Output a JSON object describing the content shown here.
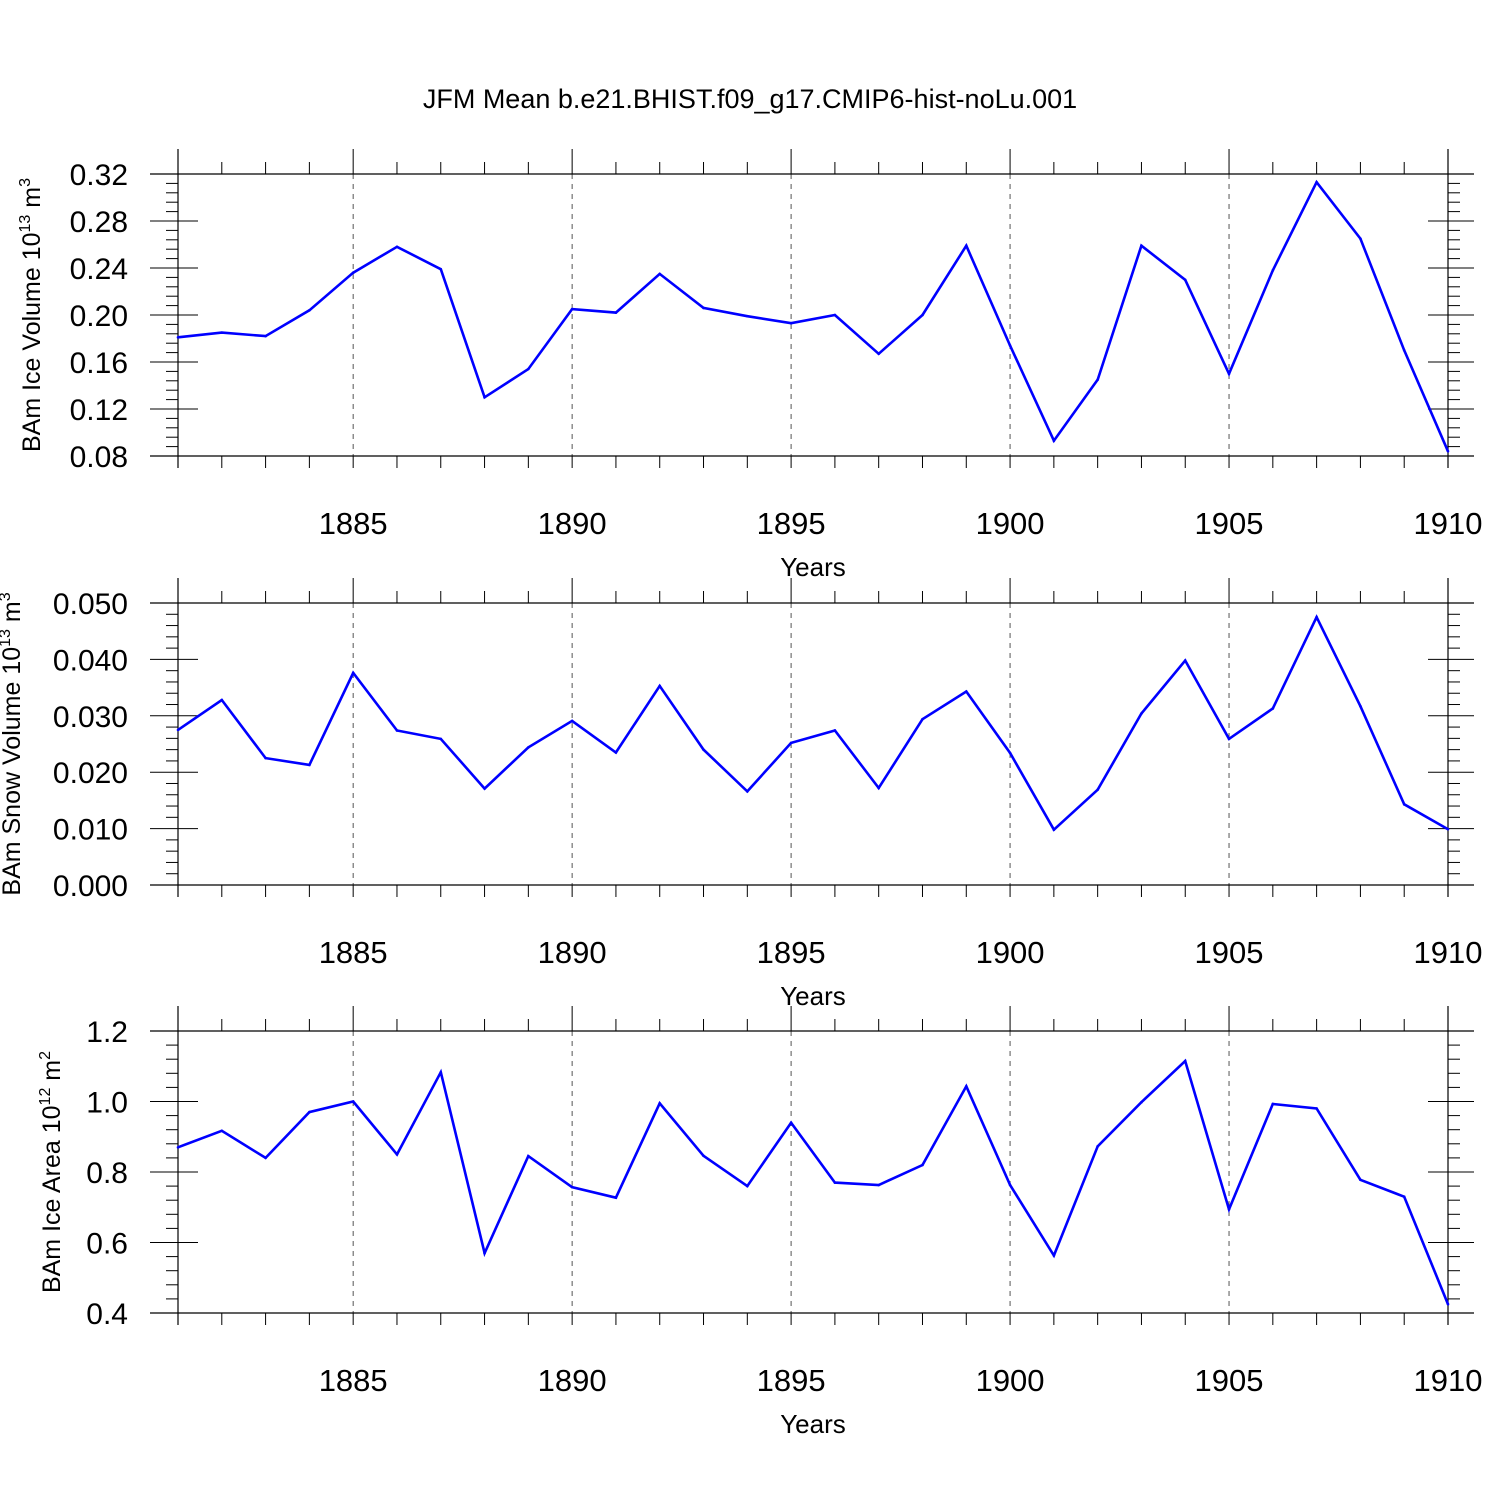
{
  "title": "JFM Mean b.e21.BHIST.f09_g17.CMIP6-hist-noLu.001",
  "colors": {
    "line": "#0000ff",
    "axis": "#000000",
    "grid": "#555555"
  },
  "chart_data": [
    {
      "type": "line",
      "xlabel": "Years",
      "ylabel": {
        "text": "BAm Ice Volume 10",
        "sup": "13",
        "unit": " m",
        "unit_sup": "3"
      },
      "xlim": [
        1881,
        1910
      ],
      "ylim": [
        0.08,
        0.32
      ],
      "xticks": [
        1885,
        1890,
        1895,
        1900,
        1905,
        1910
      ],
      "yticks": [
        "0.08",
        "0.12",
        "0.16",
        "0.20",
        "0.24",
        "0.28",
        "0.32"
      ],
      "grid": "vertical dashed at major x ticks",
      "x": [
        1881,
        1882,
        1883,
        1884,
        1885,
        1886,
        1887,
        1888,
        1889,
        1890,
        1891,
        1892,
        1893,
        1894,
        1895,
        1896,
        1897,
        1898,
        1899,
        1900,
        1901,
        1902,
        1903,
        1904,
        1905,
        1906,
        1907,
        1908,
        1909,
        1910
      ],
      "values": [
        0.181,
        0.185,
        0.182,
        0.204,
        0.236,
        0.258,
        0.239,
        0.13,
        0.154,
        0.205,
        0.202,
        0.235,
        0.206,
        0.199,
        0.193,
        0.2,
        0.167,
        0.2,
        0.259,
        0.174,
        0.093,
        0.145,
        0.259,
        0.23,
        0.15,
        0.238,
        0.313,
        0.265,
        0.17,
        0.084
      ]
    },
    {
      "type": "line",
      "xlabel": "Years",
      "ylabel": {
        "text": "BAm Snow Volume 10",
        "sup": "13",
        "unit": " m",
        "unit_sup": "3"
      },
      "xlim": [
        1881,
        1910
      ],
      "ylim": [
        0.0,
        0.05
      ],
      "xticks": [
        1885,
        1890,
        1895,
        1900,
        1905,
        1910
      ],
      "yticks": [
        "0.000",
        "0.010",
        "0.020",
        "0.030",
        "0.040",
        "0.050"
      ],
      "grid": "vertical dashed at major x ticks",
      "x": [
        1881,
        1882,
        1883,
        1884,
        1885,
        1886,
        1887,
        1888,
        1889,
        1890,
        1891,
        1892,
        1893,
        1894,
        1895,
        1896,
        1897,
        1898,
        1899,
        1900,
        1901,
        1902,
        1903,
        1904,
        1905,
        1906,
        1907,
        1908,
        1909,
        1910
      ],
      "values": [
        0.0275,
        0.0328,
        0.0225,
        0.0213,
        0.0376,
        0.0274,
        0.0259,
        0.0171,
        0.0244,
        0.0291,
        0.0235,
        0.0353,
        0.024,
        0.0166,
        0.0252,
        0.0274,
        0.0172,
        0.0294,
        0.0343,
        0.0234,
        0.0098,
        0.0169,
        0.0304,
        0.0398,
        0.0259,
        0.0313,
        0.0475,
        0.0317,
        0.0143,
        0.0099
      ]
    },
    {
      "type": "line",
      "xlabel": "Years",
      "ylabel": {
        "text": "BAm Ice Area 10",
        "sup": "12",
        "unit": " m",
        "unit_sup": "2"
      },
      "xlim": [
        1881,
        1910
      ],
      "ylim": [
        0.4,
        1.2
      ],
      "xticks": [
        1885,
        1890,
        1895,
        1900,
        1905,
        1910
      ],
      "yticks": [
        "0.4",
        "0.6",
        "0.8",
        "1.0",
        "1.2"
      ],
      "grid": "vertical dashed at major x ticks",
      "x": [
        1881,
        1882,
        1883,
        1884,
        1885,
        1886,
        1887,
        1888,
        1889,
        1890,
        1891,
        1892,
        1893,
        1894,
        1895,
        1896,
        1897,
        1898,
        1899,
        1900,
        1901,
        1902,
        1903,
        1904,
        1905,
        1906,
        1907,
        1908,
        1909,
        1910
      ],
      "values": [
        0.87,
        0.917,
        0.84,
        0.97,
        1.0,
        0.85,
        1.083,
        0.57,
        0.845,
        0.757,
        0.727,
        0.995,
        0.846,
        0.76,
        0.94,
        0.77,
        0.763,
        0.82,
        1.043,
        0.763,
        0.563,
        0.873,
        0.998,
        1.115,
        0.694,
        0.993,
        0.98,
        0.778,
        0.73,
        0.425
      ]
    }
  ]
}
